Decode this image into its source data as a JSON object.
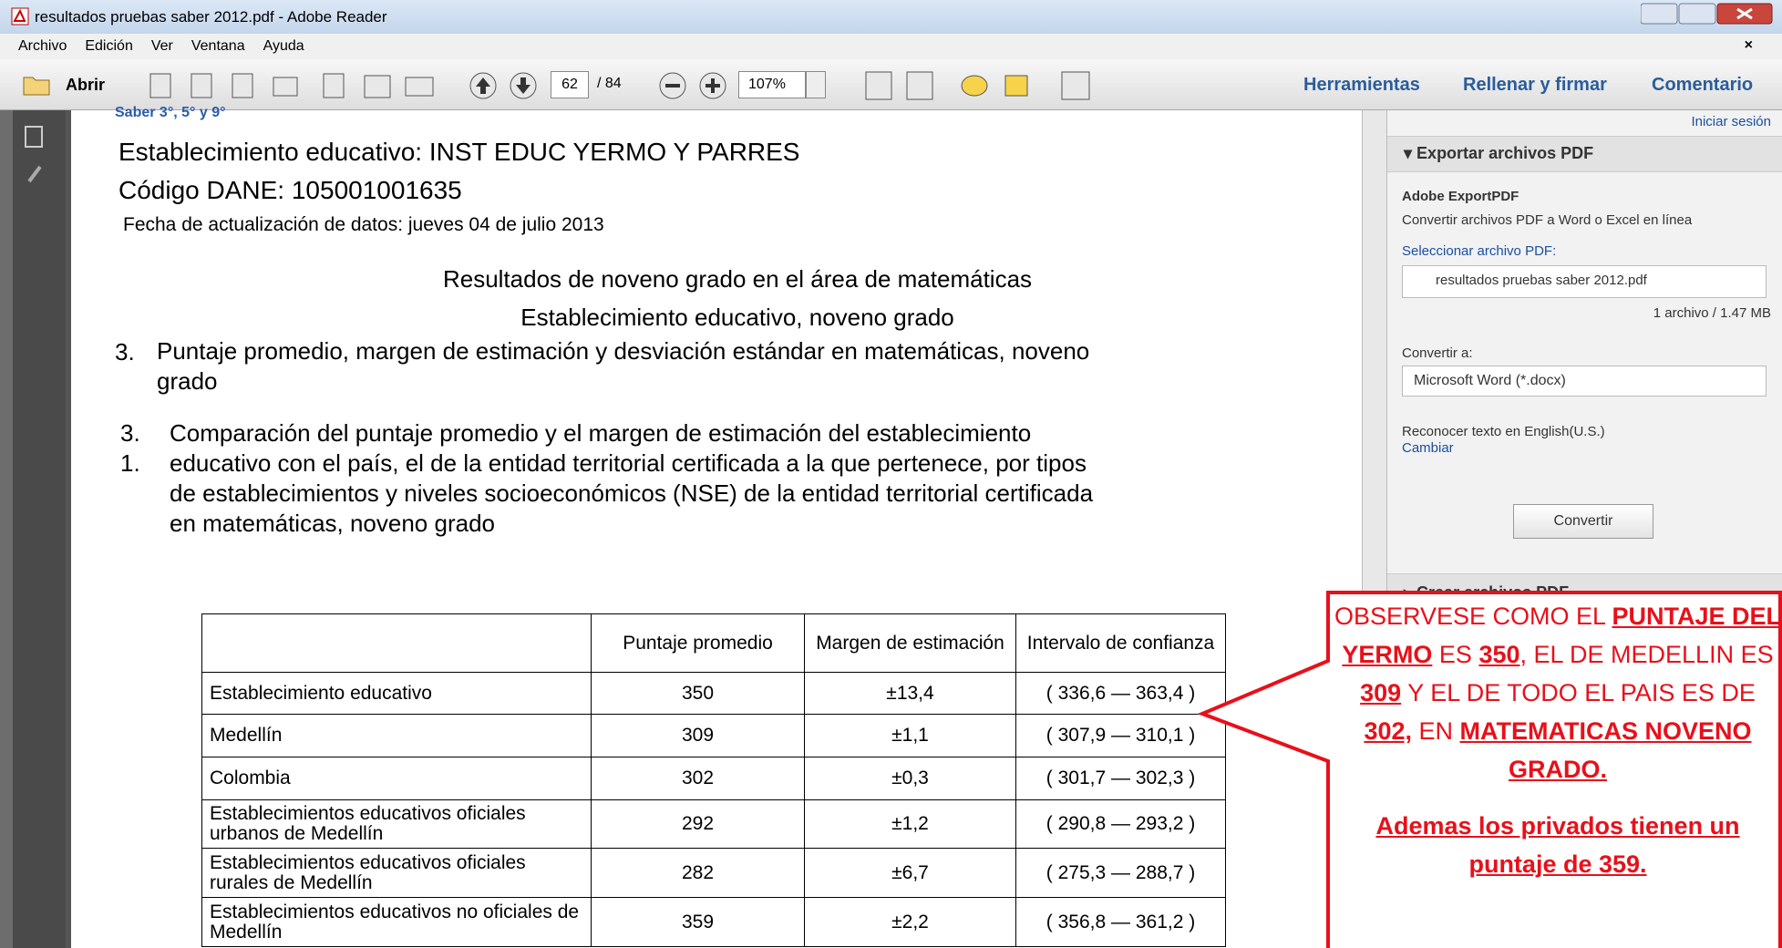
{
  "window": {
    "title": "resultados pruebas saber 2012.pdf - Adobe Reader"
  },
  "menu": [
    "Archivo",
    "Edición",
    "Ver",
    "Ventana",
    "Ayuda"
  ],
  "toolbar": {
    "open": "Abrir",
    "page": "62",
    "page_total": "/ 84",
    "zoom": "107%",
    "tabs": [
      "Herramientas",
      "Rellenar y firmar",
      "Comentario"
    ]
  },
  "document": {
    "header_fragment": "Saber 3°, 5° y 9°",
    "school": "Establecimiento educativo: INST EDUC YERMO Y PARRES",
    "code": "Código DANE: 105001001635",
    "date": "Fecha de actualización de datos: jueves 04 de julio 2013",
    "heading1": "Resultados de noveno grado en el área de matemáticas",
    "heading2": "Establecimiento educativo, noveno grado",
    "section3": {
      "number": "3.",
      "text": "Puntaje promedio, margen de estimación y desviación estándar en matemáticas, noveno grado"
    },
    "section31": {
      "number": "3.1.",
      "text": "Comparación del puntaje promedio y el margen de estimación del establecimiento educativo con el país, el de la entidad territorial certificada a la que pertenece, por tipos de establecimientos y niveles socioeconómicos (NSE) de la entidad territorial certificada en matemáticas, noveno grado"
    }
  },
  "table": {
    "header": [
      "Puntaje promedio",
      "Margen de estimación",
      "Intervalo de confianza"
    ],
    "rows": [
      [
        "Establecimiento educativo",
        "350",
        "±13,4",
        "( 336,6 — 363,4 )"
      ],
      [
        "Medellín",
        "309",
        "±1,1",
        "( 307,9 — 310,1 )"
      ],
      [
        "Colombia",
        "302",
        "±0,3",
        "( 301,7 — 302,3 )"
      ],
      [
        "Establecimientos educativos oficiales urbanos de Medellín",
        "292",
        "±1,2",
        "( 290,8 — 293,2 )"
      ],
      [
        "Establecimientos educativos oficiales rurales de Medellín",
        "282",
        "±6,7",
        "( 275,3 — 288,7 )"
      ],
      [
        "Establecimientos educativos no oficiales de Medellín",
        "359",
        "±2,2",
        "( 356,8 — 361,2 )"
      ]
    ]
  },
  "panel": {
    "sign_in": "Iniciar sesión",
    "export": "Exportar archivos PDF",
    "service": "Adobe ExportPDF",
    "description": "Convertir archivos PDF a Word o Excel en línea",
    "select": "Seleccionar archivo PDF:",
    "file": "resultados pruebas saber 2012.pdf",
    "file_info": "1 archivo / 1.47 MB",
    "convert_to": "Convertir a:",
    "format": "Microsoft Word (*.docx)",
    "ocr": "Reconocer texto en English(U.S.)",
    "change": "Cambiar",
    "button": "Convertir",
    "create": "Crear archivos PDF"
  },
  "callout": {
    "paragraphs": [
      [
        {
          "text": "OBSERVESE COMO EL ",
          "emphasis": false
        },
        {
          "text": "PUNTAJE DEL YERMO",
          "emphasis": true
        },
        {
          "text": " ES ",
          "emphasis": false
        },
        {
          "text": "350",
          "emphasis": true
        },
        {
          "text": ",  EL DE MEDELLIN ES ",
          "emphasis": false
        },
        {
          "text": "309",
          "emphasis": true
        },
        {
          "text": " Y EL DE TODO EL PAIS ES DE ",
          "emphasis": false
        },
        {
          "text": "302,",
          "emphasis": true
        },
        {
          "text": " EN ",
          "emphasis": false
        },
        {
          "text": "MATEMATICAS NOVENO GRADO.",
          "emphasis": true
        }
      ],
      [
        {
          "text": "Ademas los privados tienen un puntaje de 359.",
          "emphasis": true
        }
      ]
    ]
  }
}
